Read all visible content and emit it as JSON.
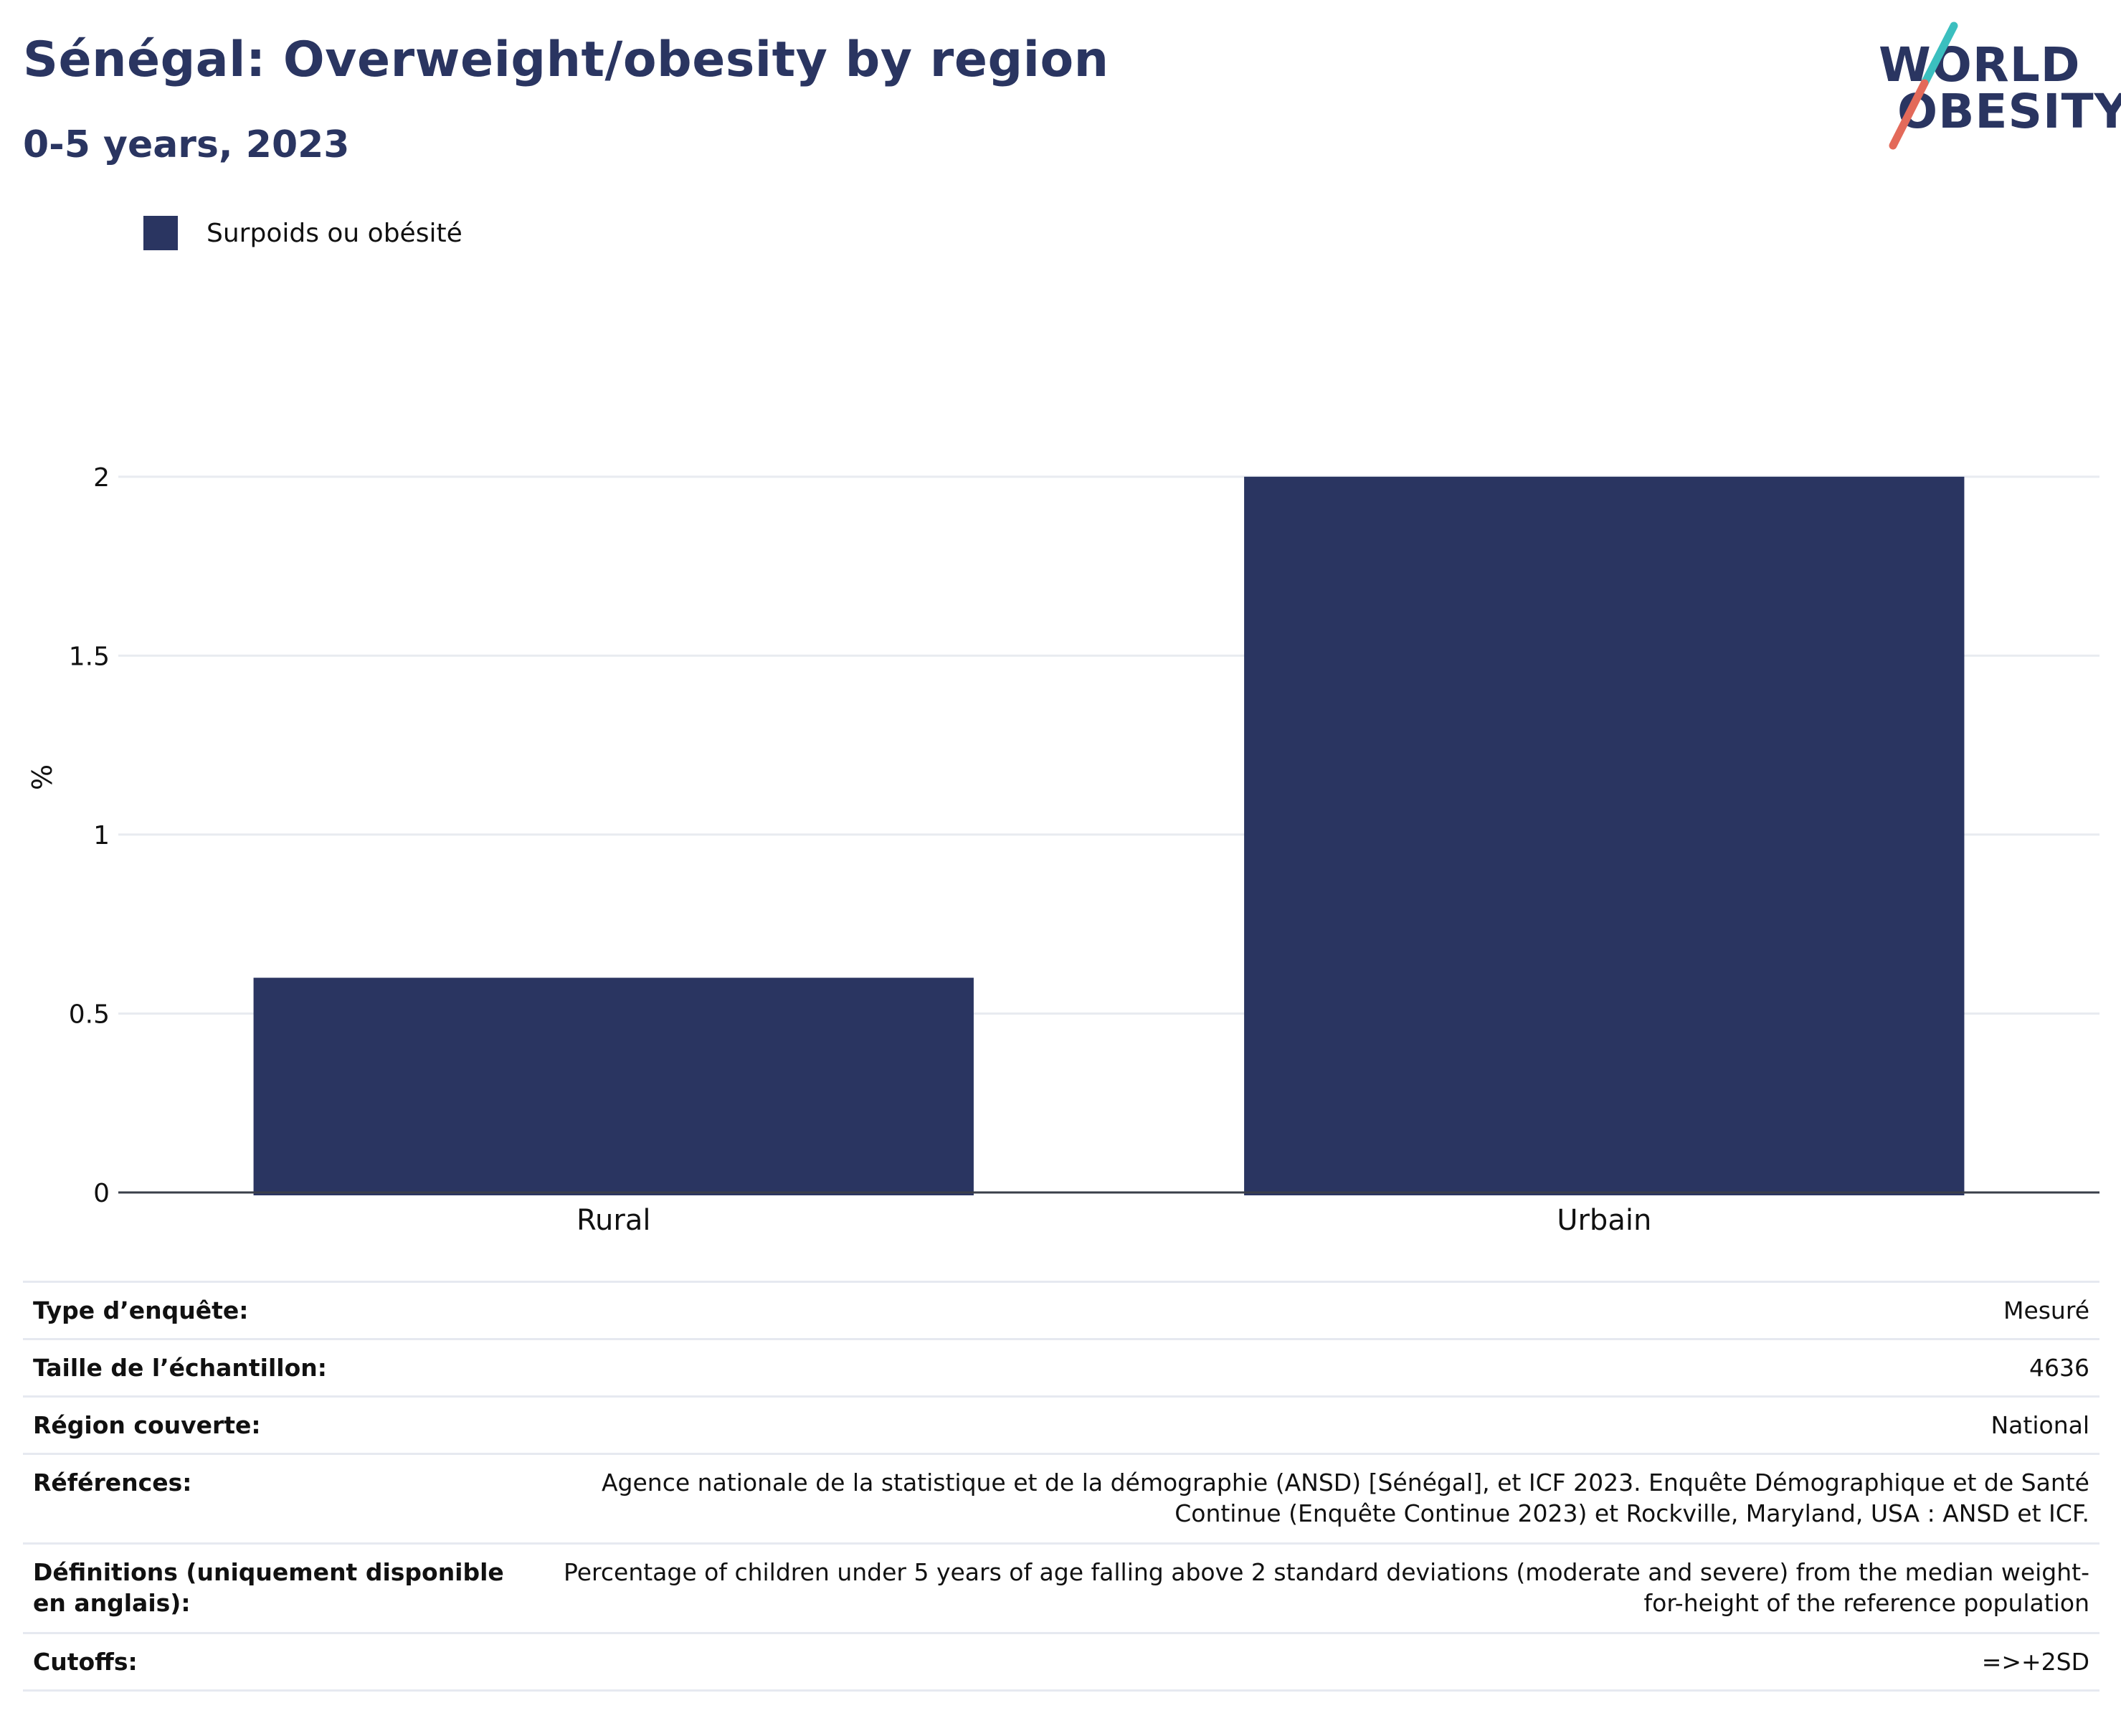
{
  "header": {
    "title": "Sénégal: Overweight/obesity by region",
    "subtitle": "0-5 years, 2023"
  },
  "logo": {
    "line1": "WORLD",
    "line2": "OBESITY",
    "colors": {
      "navy": "#2a3561",
      "teal": "#3bbfbf",
      "coral": "#e36a5a"
    }
  },
  "legend": {
    "label": "Surpoids ou obésité",
    "color": "#2a3561"
  },
  "chart_data": {
    "type": "bar",
    "categories": [
      "Rural",
      "Urbain"
    ],
    "series": [
      {
        "name": "Surpoids ou obésité",
        "values": [
          0.6,
          2.0
        ],
        "color": "#2a3561"
      }
    ],
    "xlabel": "",
    "ylabel": "%",
    "ylim": [
      0,
      2.2
    ],
    "yticks": [
      0,
      0.5,
      1,
      1.5,
      2
    ],
    "ytick_labels": [
      "0",
      "0.5",
      "1",
      "1.5",
      "2"
    ],
    "grid": true,
    "legend_position": "top-left"
  },
  "info_table": [
    {
      "key": "Type d’enquête:",
      "value": "Mesuré"
    },
    {
      "key": "Taille de l’échantillon:",
      "value": "4636"
    },
    {
      "key": "Région couverte:",
      "value": "National"
    },
    {
      "key": "Références:",
      "value": "Agence nationale de la statistique et de la démographie (ANSD) [Sénégal], et ICF 2023. Enquête Démographique et de Santé Continue (Enquête Continue 2023) et Rockville, Maryland, USA : ANSD et ICF."
    },
    {
      "key": "Définitions (uniquement disponible en anglais):",
      "value": "Percentage of children under 5 years of age falling above 2 standard deviations (moderate and severe) from the median weight-for-height of the reference population"
    },
    {
      "key": "Cutoffs:",
      "value": "=>+2SD"
    }
  ]
}
